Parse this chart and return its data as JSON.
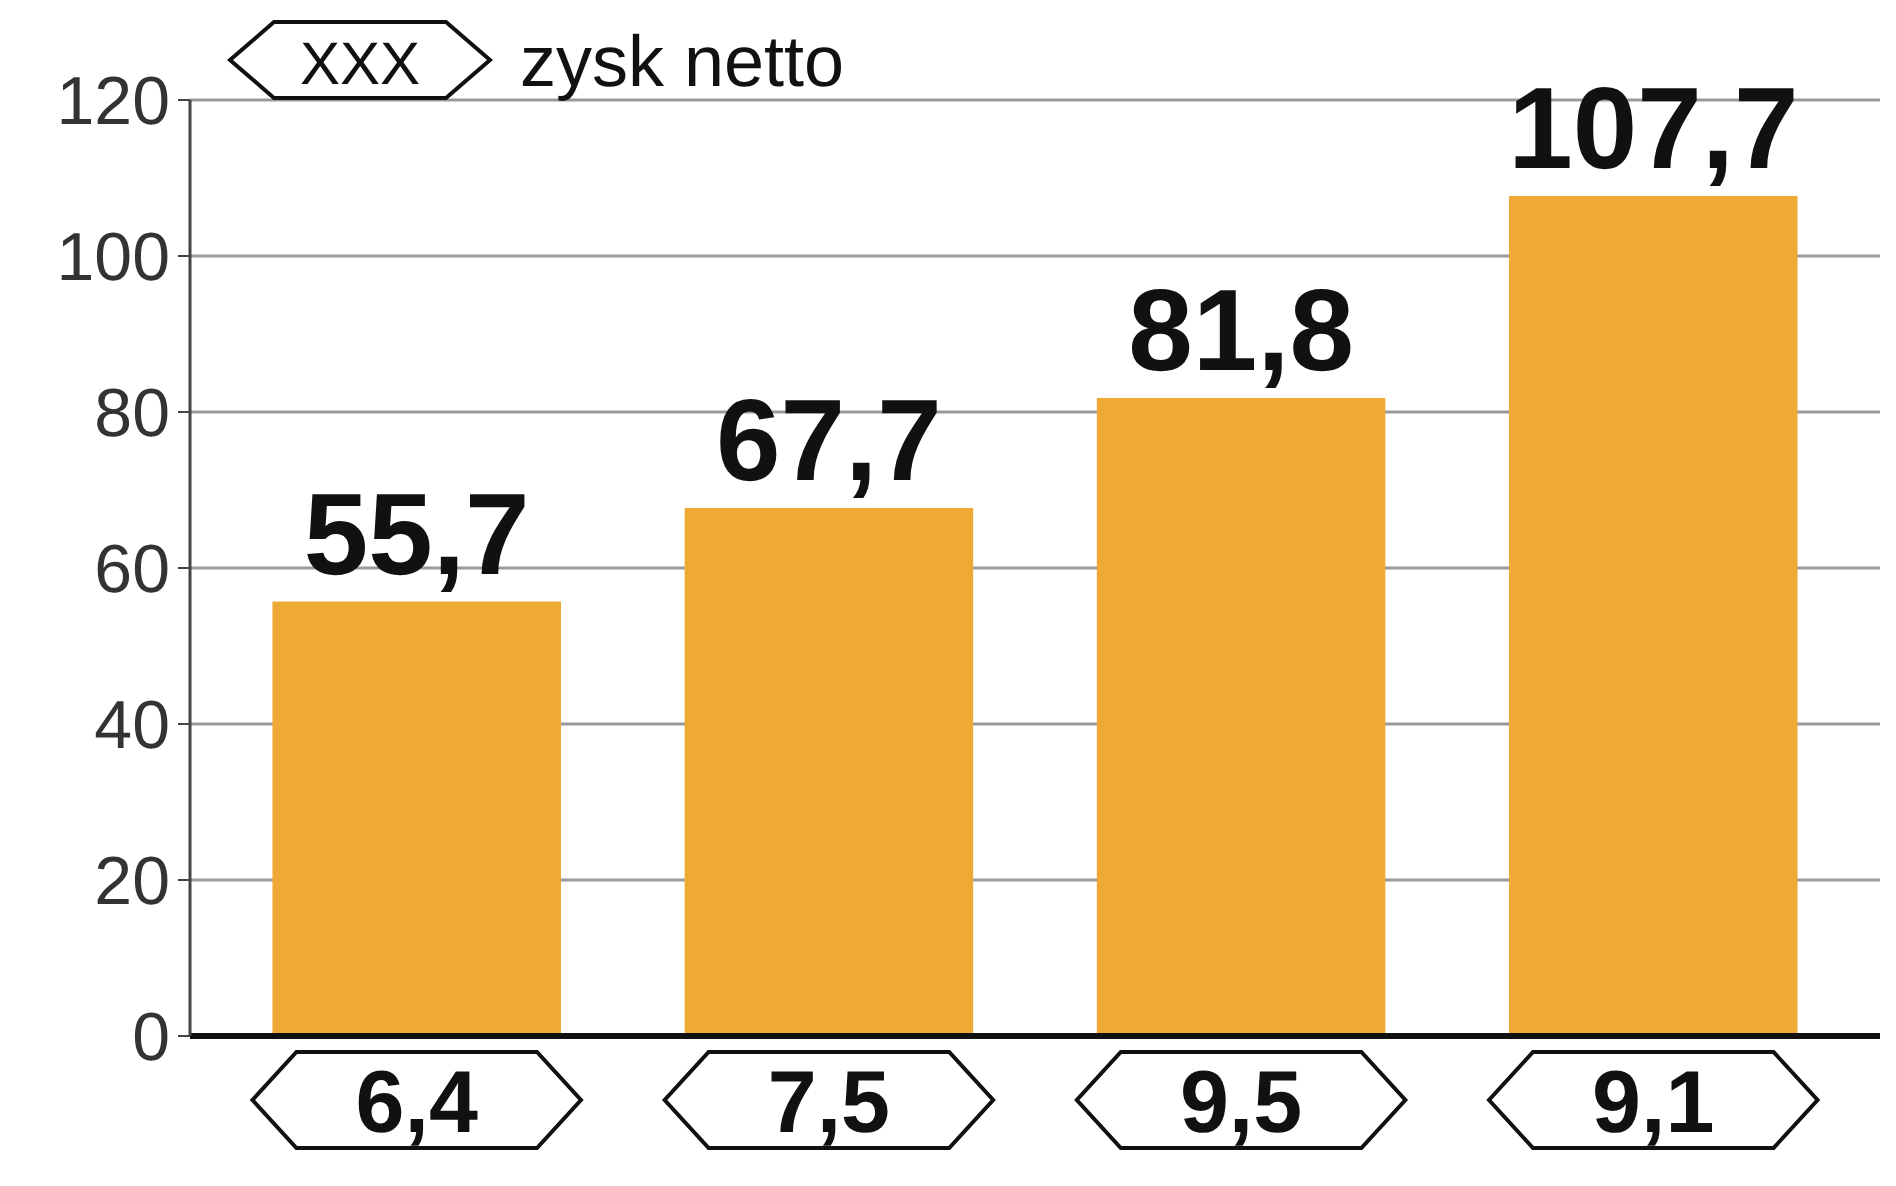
{
  "chart_data": {
    "type": "bar",
    "categories": [
      null,
      null,
      null,
      null
    ],
    "series": [
      {
        "color": "#efa935",
        "values": [
          55.7,
          67.7,
          81.8,
          107.7
        ],
        "value_labels": [
          "55,7",
          "67,7",
          "81,8",
          "107,7"
        ]
      }
    ],
    "annotations": [
      "XXX",
      "zysk netto",
      "6,4",
      "7,5",
      "9,5",
      "9,1"
    ],
    "ylim": [
      0,
      120
    ],
    "yticks": [
      0,
      20,
      40,
      60,
      80,
      100,
      120
    ],
    "grid": "y"
  }
}
